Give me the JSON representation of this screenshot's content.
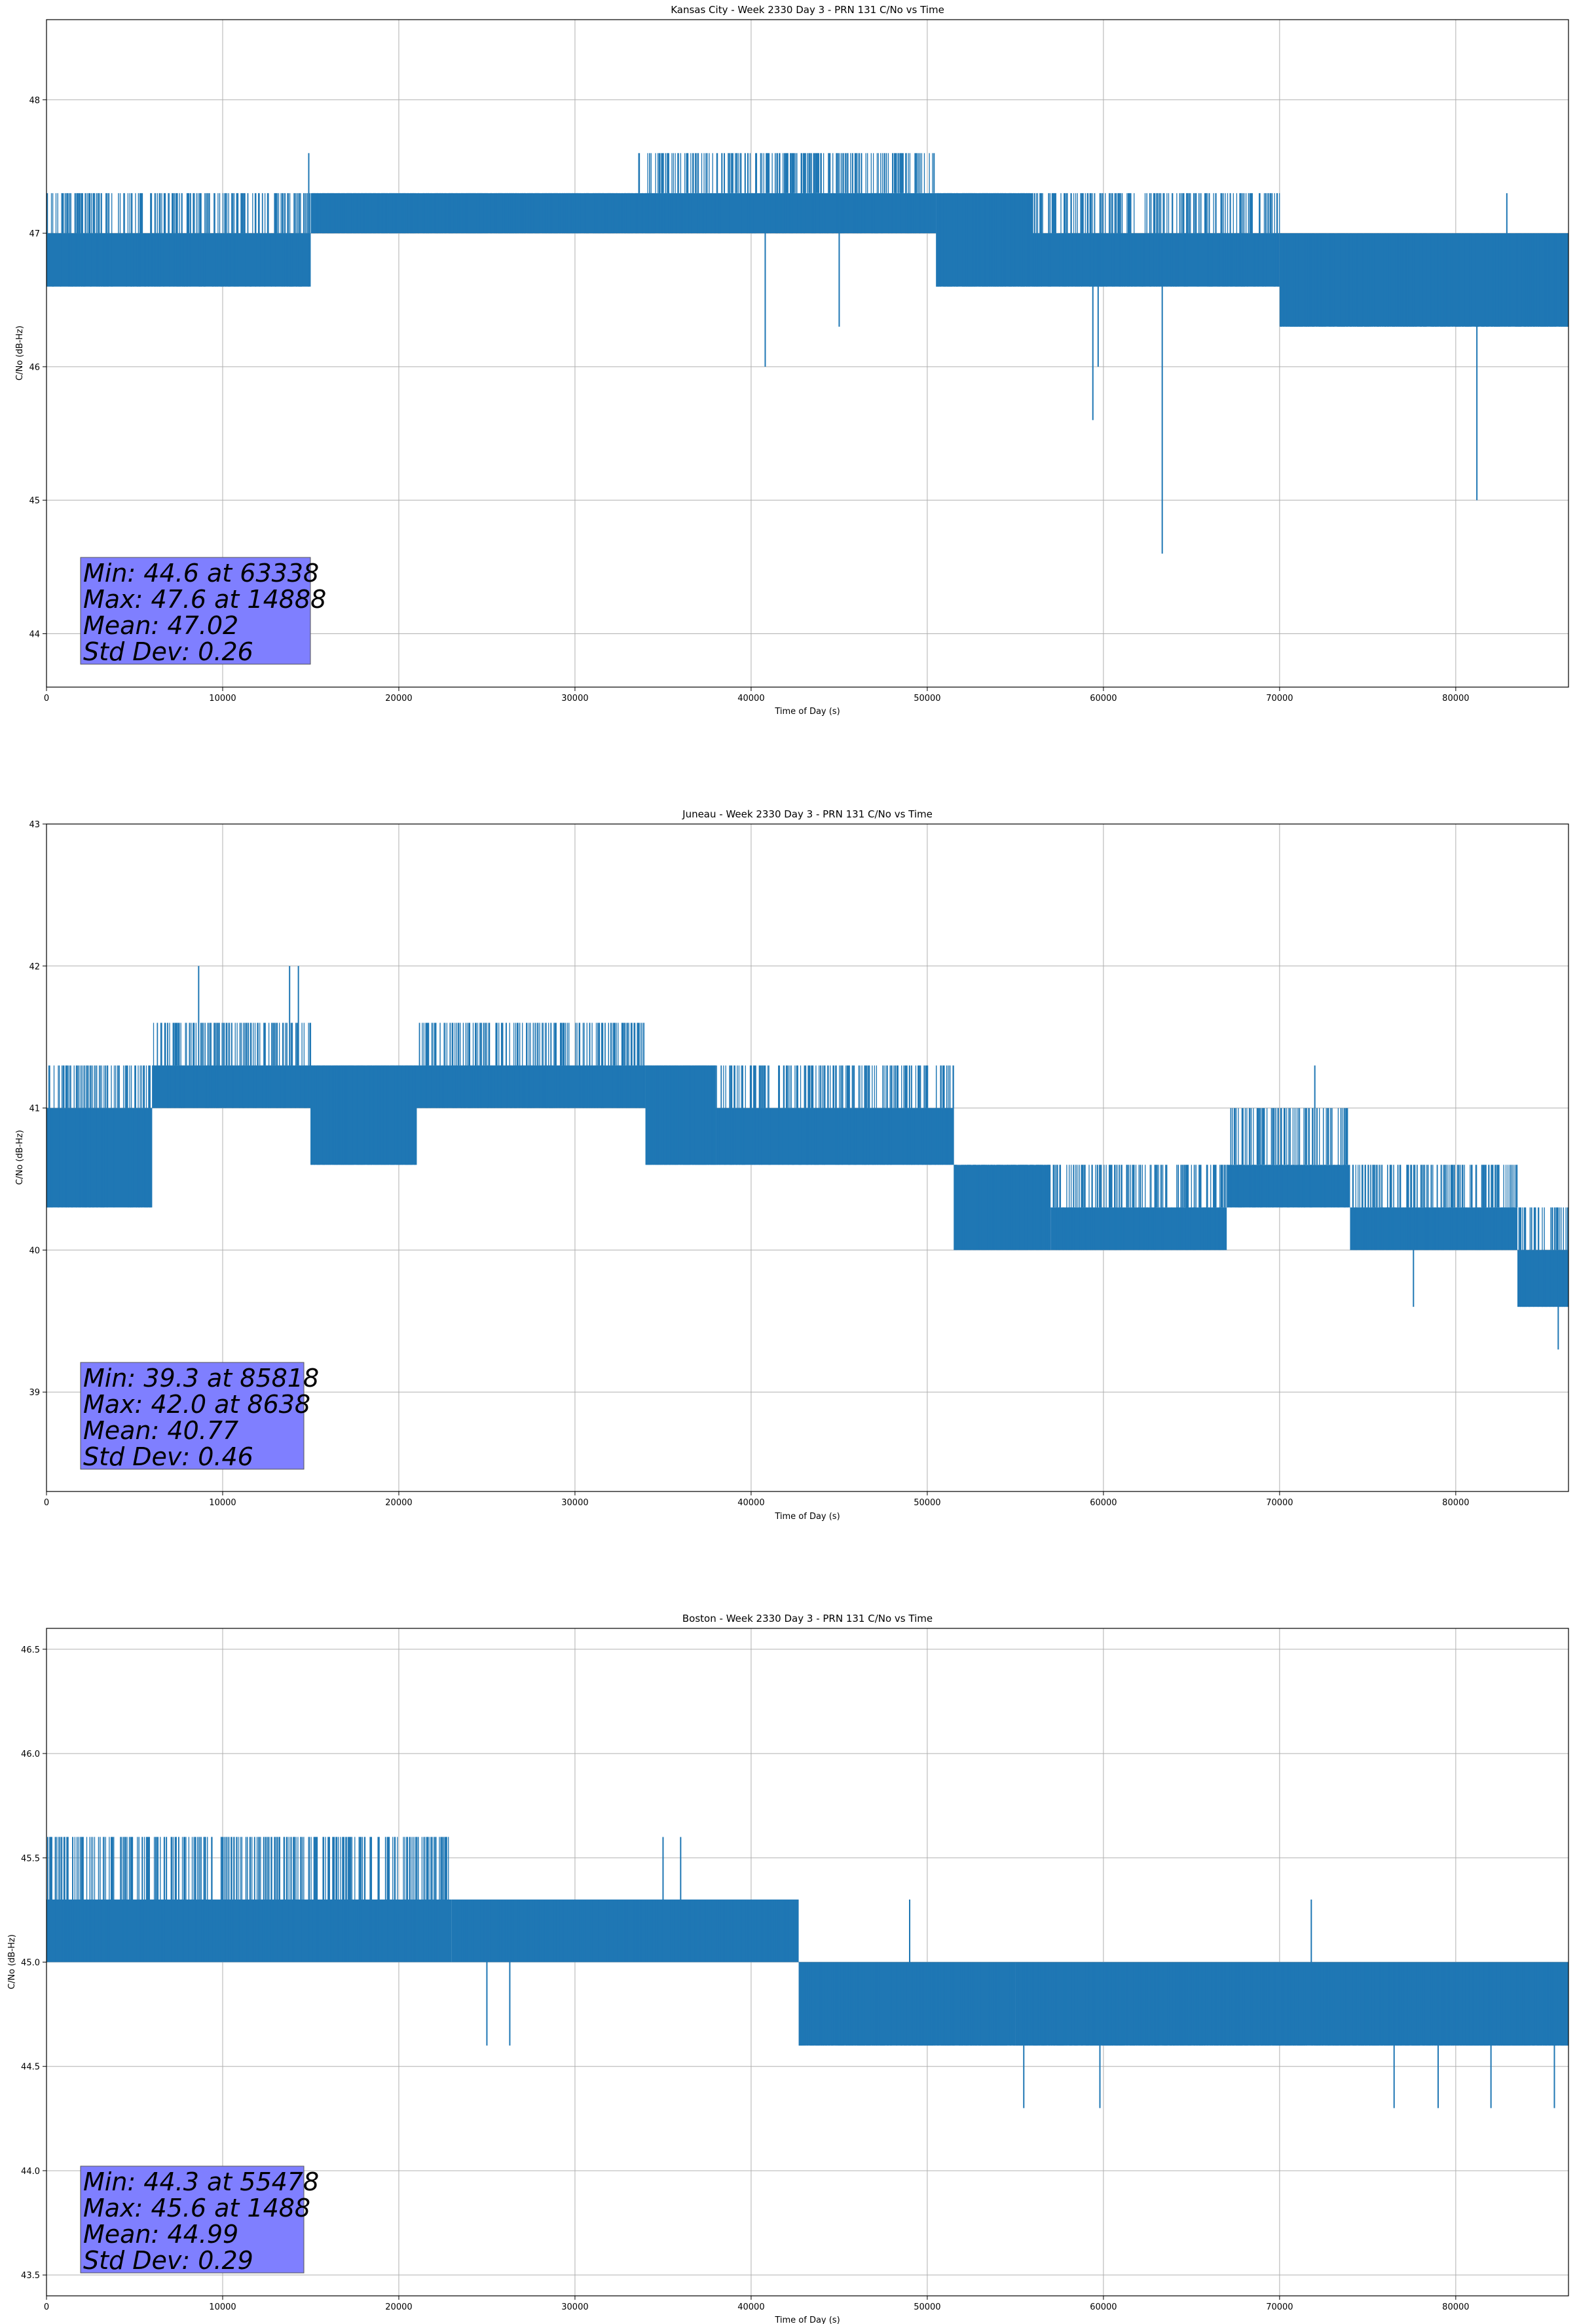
{
  "chart_data": [
    {
      "type": "line",
      "title": "Kansas City - Week 2330 Day 3 - PRN 131 C/No vs Time",
      "xlabel": "Time of Day (s)",
      "ylabel": "C/No (dB-Hz)",
      "xlim": [
        0,
        86400
      ],
      "ylim": [
        43.6,
        48.6
      ],
      "xticks": [
        0,
        10000,
        20000,
        30000,
        40000,
        50000,
        60000,
        70000,
        80000
      ],
      "yticks": [
        44,
        45,
        46,
        47,
        48
      ],
      "ytick_decimals": 0,
      "grid": true,
      "color": "#1f77b4",
      "series": [
        {
          "segments": [
            {
              "start": 0,
              "end": 3000,
              "base": 47.0,
              "low": 46.6,
              "high": 47.3
            },
            {
              "start": 3000,
              "end": 15000,
              "base": 47.0,
              "low": 46.6,
              "high": 47.3
            },
            {
              "start": 15000,
              "end": 33500,
              "base": 47.3,
              "low": 47.0,
              "high": 47.3
            },
            {
              "start": 33500,
              "end": 50500,
              "base": 47.3,
              "low": 47.0,
              "high": 47.6
            },
            {
              "start": 50500,
              "end": 56000,
              "base": 47.3,
              "low": 46.6,
              "high": 47.3
            },
            {
              "start": 56000,
              "end": 70000,
              "base": 47.0,
              "low": 46.6,
              "high": 47.3
            },
            {
              "start": 70000,
              "end": 86400,
              "base": 47.0,
              "low": 46.3,
              "high": 47.0
            }
          ],
          "spikes": [
            {
              "x": 40800,
              "y": 46.0
            },
            {
              "x": 45000,
              "y": 46.3
            },
            {
              "x": 59400,
              "y": 45.6
            },
            {
              "x": 59700,
              "y": 46.0
            },
            {
              "x": 63338,
              "y": 44.6
            },
            {
              "x": 81200,
              "y": 45.0
            },
            {
              "x": 14888,
              "y": 47.6
            },
            {
              "x": 82900,
              "y": 47.3
            }
          ]
        }
      ],
      "stats": {
        "lines": [
          "Min: 44.6 at 63338",
          "Max: 47.6 at 14888",
          "Mean: 47.02",
          "Std Dev: 0.26"
        ]
      }
    },
    {
      "type": "line",
      "title": "Juneau - Week 2330 Day 3 - PRN 131 C/No vs Time",
      "xlabel": "Time of Day (s)",
      "ylabel": "C/No (dB-Hz)",
      "xlim": [
        0,
        86400
      ],
      "ylim": [
        38.3,
        43.0
      ],
      "xticks": [
        0,
        10000,
        20000,
        30000,
        40000,
        50000,
        60000,
        70000,
        80000
      ],
      "yticks": [
        39,
        40,
        41,
        42,
        43
      ],
      "ytick_decimals": 0,
      "grid": true,
      "color": "#1f77b4",
      "series": [
        {
          "segments": [
            {
              "start": 0,
              "end": 6000,
              "base": 41.0,
              "low": 40.3,
              "high": 41.3
            },
            {
              "start": 6000,
              "end": 15000,
              "base": 41.3,
              "low": 41.0,
              "high": 41.6
            },
            {
              "start": 15000,
              "end": 21000,
              "base": 41.3,
              "low": 40.6,
              "high": 41.3
            },
            {
              "start": 21000,
              "end": 34000,
              "base": 41.3,
              "low": 41.0,
              "high": 41.6
            },
            {
              "start": 34000,
              "end": 38000,
              "base": 41.3,
              "low": 40.6,
              "high": 41.3
            },
            {
              "start": 38000,
              "end": 51500,
              "base": 41.0,
              "low": 40.6,
              "high": 41.3
            },
            {
              "start": 51500,
              "end": 57000,
              "base": 40.6,
              "low": 40.0,
              "high": 40.6
            },
            {
              "start": 57000,
              "end": 67000,
              "base": 40.3,
              "low": 40.0,
              "high": 40.6
            },
            {
              "start": 67000,
              "end": 74000,
              "base": 40.6,
              "low": 40.3,
              "high": 41.0
            },
            {
              "start": 74000,
              "end": 83500,
              "base": 40.3,
              "low": 40.0,
              "high": 40.6
            },
            {
              "start": 83500,
              "end": 86400,
              "base": 40.0,
              "low": 39.6,
              "high": 40.3
            }
          ],
          "spikes": [
            {
              "x": 8638,
              "y": 42.0
            },
            {
              "x": 13800,
              "y": 42.0
            },
            {
              "x": 14300,
              "y": 42.0
            },
            {
              "x": 72000,
              "y": 41.3
            },
            {
              "x": 77600,
              "y": 39.6
            },
            {
              "x": 85818,
              "y": 39.3
            }
          ]
        }
      ],
      "stats": {
        "lines": [
          "Min: 39.3 at 85818",
          "Max: 42.0 at 8638",
          "Mean: 40.77",
          "Std Dev: 0.46"
        ]
      }
    },
    {
      "type": "line",
      "title": "Boston - Week 2330 Day 3 - PRN 131 C/No vs Time",
      "xlabel": "Time of Day (s)",
      "ylabel": "C/No (dB-Hz)",
      "xlim": [
        0,
        86400
      ],
      "ylim": [
        43.4,
        46.6
      ],
      "xticks": [
        0,
        10000,
        20000,
        30000,
        40000,
        50000,
        60000,
        70000,
        80000
      ],
      "yticks": [
        43.5,
        44.0,
        44.5,
        45.0,
        45.5,
        46.0,
        46.5
      ],
      "ytick_decimals": 1,
      "grid": true,
      "color": "#1f77b4",
      "series": [
        {
          "segments": [
            {
              "start": 0,
              "end": 7500,
              "base": 45.3,
              "low": 45.0,
              "high": 45.6
            },
            {
              "start": 7500,
              "end": 23000,
              "base": 45.3,
              "low": 45.0,
              "high": 45.6
            },
            {
              "start": 23000,
              "end": 42700,
              "base": 45.3,
              "low": 45.0,
              "high": 45.3
            },
            {
              "start": 42700,
              "end": 55000,
              "base": 45.0,
              "low": 44.6,
              "high": 45.0
            },
            {
              "start": 55000,
              "end": 86400,
              "base": 45.0,
              "low": 44.6,
              "high": 45.0
            }
          ],
          "spikes": [
            {
              "x": 1488,
              "y": 45.6
            },
            {
              "x": 25000,
              "y": 44.6
            },
            {
              "x": 26300,
              "y": 44.6
            },
            {
              "x": 35000,
              "y": 45.6
            },
            {
              "x": 36000,
              "y": 45.6
            },
            {
              "x": 49000,
              "y": 45.3
            },
            {
              "x": 55478,
              "y": 44.3
            },
            {
              "x": 59800,
              "y": 44.3
            },
            {
              "x": 71800,
              "y": 45.3
            },
            {
              "x": 76500,
              "y": 44.3
            },
            {
              "x": 79000,
              "y": 44.3
            },
            {
              "x": 82000,
              "y": 44.3
            },
            {
              "x": 85600,
              "y": 44.3
            }
          ]
        }
      ],
      "stats": {
        "lines": [
          "Min: 44.3 at 55478",
          "Max: 45.6 at 1488",
          "Mean: 44.99",
          "Std Dev: 0.29"
        ]
      }
    }
  ]
}
